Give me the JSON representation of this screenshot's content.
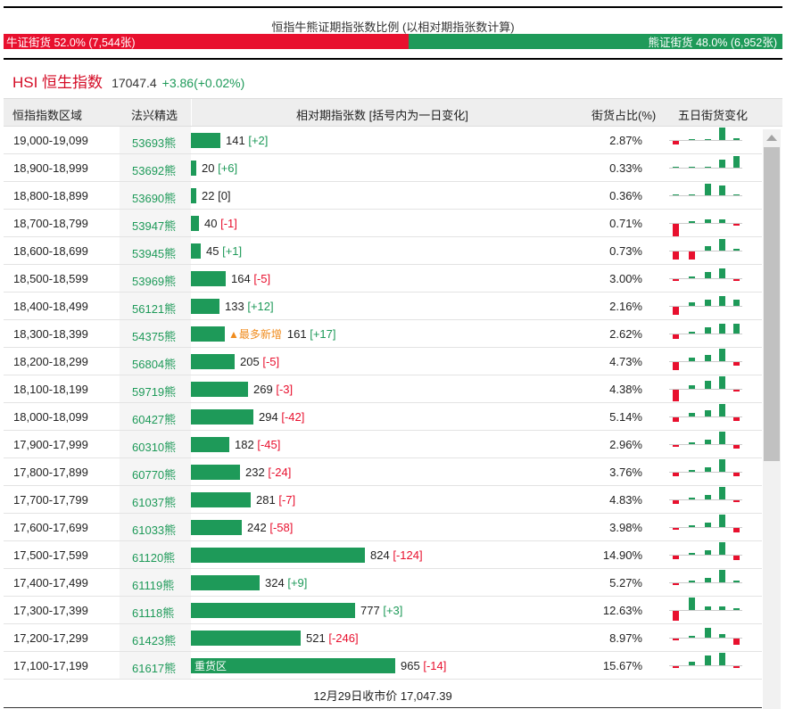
{
  "ratio": {
    "title": "恒指牛熊证期指张数比例 (以相对期指张数计算)",
    "bull_label": "牛证街货 52.0% (7,544张)",
    "bear_label": "熊证街货 48.0% (6,952张)",
    "bull_fraction": 0.52,
    "bull_color": "#e8102e",
    "bear_color": "#1e9a59"
  },
  "index": {
    "name": "HSI 恒生指数",
    "value": "17047.4",
    "change": "+3.86(+0.02%)"
  },
  "table": {
    "headers": {
      "range": "恒指指数区域",
      "pick": "法兴精选",
      "count": "相对期指张数 [括号内为一日变化]",
      "pct": "街货占比(%)",
      "five_day": "五日街货变化"
    },
    "rows": [
      {
        "range": "19,000-19,099",
        "pick": "53693熊",
        "count": 141,
        "count_text": "141",
        "change": "[+2]",
        "pct": "2.87%",
        "spark": [
          -2,
          0,
          0,
          8,
          1
        ]
      },
      {
        "range": "18,900-18,999",
        "pick": "53692熊",
        "count": 20,
        "count_text": "20",
        "change": "[+6]",
        "pct": "0.33%",
        "spark": [
          0,
          0,
          0,
          5,
          7
        ]
      },
      {
        "range": "18,800-18,899",
        "pick": "53690熊",
        "count": 22,
        "count_text": "22",
        "change": "[0]",
        "pct": "0.36%",
        "spark": [
          0,
          0,
          7,
          6,
          0
        ]
      },
      {
        "range": "18,700-18,799",
        "pick": "53947熊",
        "count": 40,
        "count_text": "40",
        "change": "[-1]",
        "pct": "0.71%",
        "spark": [
          -8,
          1,
          2,
          2,
          -1
        ]
      },
      {
        "range": "18,600-18,699",
        "pick": "53945熊",
        "count": 45,
        "count_text": "45",
        "change": "[+1]",
        "pct": "0.73%",
        "spark": [
          -5,
          -5,
          3,
          7,
          1
        ]
      },
      {
        "range": "18,500-18,599",
        "pick": "53969熊",
        "count": 164,
        "count_text": "164",
        "change": "[-5]",
        "pct": "3.00%",
        "spark": [
          -1,
          1,
          4,
          6,
          -1
        ]
      },
      {
        "range": "18,400-18,499",
        "pick": "56121熊",
        "count": 133,
        "count_text": "133",
        "change": "[+12]",
        "pct": "2.16%",
        "spark": [
          -5,
          2,
          4,
          6,
          4
        ]
      },
      {
        "range": "18,300-18,399",
        "pick": "54375熊",
        "count": 161,
        "count_text": "161",
        "change": "[+17]",
        "pct": "2.62%",
        "spark": [
          -3,
          1,
          4,
          6,
          6
        ],
        "tag": "▲最多新增"
      },
      {
        "range": "18,200-18,299",
        "pick": "56804熊",
        "count": 205,
        "count_text": "205",
        "change": "[-5]",
        "pct": "4.73%",
        "spark": [
          -5,
          2,
          4,
          8,
          -2
        ]
      },
      {
        "range": "18,100-18,199",
        "pick": "59719熊",
        "count": 269,
        "count_text": "269",
        "change": "[-3]",
        "pct": "4.38%",
        "spark": [
          -7,
          2,
          5,
          8,
          -1
        ]
      },
      {
        "range": "18,000-18,099",
        "pick": "60427熊",
        "count": 294,
        "count_text": "294",
        "change": "[-42]",
        "pct": "5.14%",
        "spark": [
          -3,
          2,
          4,
          8,
          -2
        ]
      },
      {
        "range": "17,900-17,999",
        "pick": "60310熊",
        "count": 182,
        "count_text": "182",
        "change": "[-45]",
        "pct": "2.96%",
        "spark": [
          -1,
          1,
          3,
          8,
          -2
        ]
      },
      {
        "range": "17,800-17,899",
        "pick": "60770熊",
        "count": 232,
        "count_text": "232",
        "change": "[-24]",
        "pct": "3.76%",
        "spark": [
          -2,
          1,
          3,
          8,
          -2
        ]
      },
      {
        "range": "17,700-17,799",
        "pick": "61037熊",
        "count": 281,
        "count_text": "281",
        "change": "[-7]",
        "pct": "4.83%",
        "spark": [
          -2,
          1,
          3,
          8,
          -1
        ]
      },
      {
        "range": "17,600-17,699",
        "pick": "61033熊",
        "count": 242,
        "count_text": "242",
        "change": "[-58]",
        "pct": "3.98%",
        "spark": [
          -1,
          1,
          3,
          8,
          -3
        ]
      },
      {
        "range": "17,500-17,599",
        "pick": "61120熊",
        "count": 824,
        "count_text": "824",
        "change": "[-124]",
        "pct": "14.90%",
        "spark": [
          -2,
          1,
          3,
          8,
          -3
        ]
      },
      {
        "range": "17,400-17,499",
        "pick": "61119熊",
        "count": 324,
        "count_text": "324",
        "change": "[+9]",
        "pct": "5.27%",
        "spark": [
          -1,
          1,
          3,
          8,
          1
        ]
      },
      {
        "range": "17,300-17,399",
        "pick": "61118熊",
        "count": 777,
        "count_text": "777",
        "change": "[+3]",
        "pct": "12.63%",
        "spark": [
          -6,
          8,
          2,
          2,
          1
        ]
      },
      {
        "range": "17,200-17,299",
        "pick": "61423熊",
        "count": 521,
        "count_text": "521",
        "change": "[-246]",
        "pct": "8.97%",
        "spark": [
          -1,
          1,
          6,
          2,
          -4
        ]
      },
      {
        "range": "17,100-17,199",
        "pick": "61617熊",
        "count": 965,
        "count_text": "965",
        "change": "[-14]",
        "pct": "15.67%",
        "spark": [
          -1,
          2,
          6,
          8,
          -1
        ],
        "bar_label": "重货区"
      }
    ]
  },
  "footer": {
    "close_text": "12月29日收市价 17,047.39"
  },
  "colors": {
    "green": "#1e9a59",
    "red": "#e8102e",
    "orange": "#f08c1e"
  }
}
